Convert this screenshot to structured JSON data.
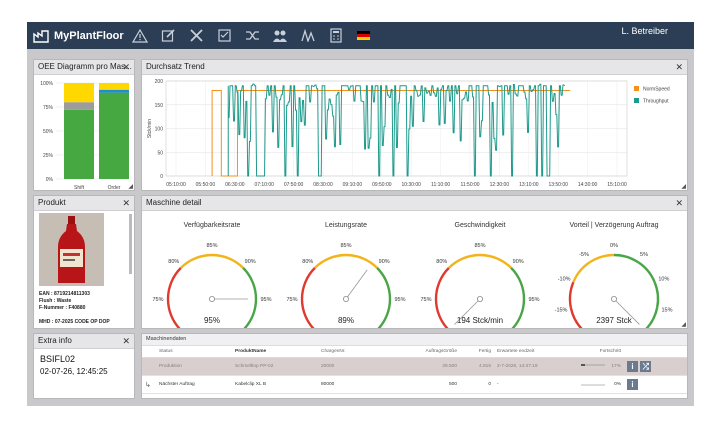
{
  "app": {
    "title": "MyPlantFloor",
    "user": "L. Betreiber",
    "nav_icons": [
      "warning-icon",
      "edit-icon",
      "tools-icon",
      "checklist-icon",
      "shuffle-icon",
      "users-icon",
      "signal-icon",
      "calculator-icon"
    ]
  },
  "oee": {
    "title": "OEE Diagramm pro Mas...",
    "y_ticks": [
      "100%",
      "75%",
      "50%",
      "25%",
      "0%"
    ],
    "categories": [
      "Shift",
      "Order"
    ],
    "colors": {
      "green": "#45a841",
      "grey": "#9c9c9c",
      "blue": "#1e8ed3",
      "yellow": "#ffd800"
    },
    "bars": [
      {
        "green": 0.72,
        "grey": 0.08,
        "blue": 0.0,
        "yellow": 0.2
      },
      {
        "green": 0.9,
        "grey": 0.0,
        "blue": 0.03,
        "yellow": 0.07
      }
    ]
  },
  "trend": {
    "title": "Durchsatz Trend",
    "ylabel": "Stck/min",
    "y_ticks": [
      "200",
      "150",
      "100",
      "50",
      "0"
    ],
    "x_ticks": [
      "05:10:00",
      "05:50:00",
      "06:30:00",
      "07:10:00",
      "07:50:00",
      "08:30:00",
      "09:10:00",
      "09:50:00",
      "10:30:00",
      "11:10:00",
      "11:50:00",
      "12:30:00",
      "13:10:00",
      "13:50:00",
      "14:30:00",
      "15:10:00"
    ],
    "legend": [
      {
        "name": "NormSpeed",
        "color": "#f2921b"
      },
      {
        "name": "Throughput",
        "color": "#1e9a8c"
      }
    ]
  },
  "product": {
    "title": "Produkt",
    "ean": "EAN : 8719214811303",
    "flush": "Flush : Waste",
    "fnum": "F-Nummer : F40880",
    "mhd": "MHD : 07-2025 CODE OP DOP"
  },
  "machine": {
    "title": "Maschine detail",
    "gauges": [
      {
        "title": "Verfügbarkeitsrate",
        "value_text": "95%",
        "labels": [
          "70%",
          "75%",
          "80%",
          "85%",
          "90%",
          "95%",
          "100%"
        ],
        "value": 95,
        "min": 70,
        "max": 100
      },
      {
        "title": "Leistungsrate",
        "value_text": "89%",
        "labels": [
          "70%",
          "75%",
          "80%",
          "85%",
          "90%",
          "95%",
          "100%"
        ],
        "value": 89,
        "min": 70,
        "max": 100
      },
      {
        "title": "Geschwindigkeit",
        "value_text": "194 Stck/min",
        "labels": [
          "70%",
          "75%",
          "80%",
          "85%",
          "90%",
          "95%",
          "100%"
        ],
        "value": 70,
        "min": 70,
        "max": 100
      },
      {
        "title": "Vorteil | Verzögerung Auftrag",
        "value_text": "2397 Stck",
        "labels": [
          "-20%",
          "-15%",
          "-10%",
          "-5%",
          "0%",
          "5%",
          "10%",
          "15%",
          "20%"
        ],
        "value": 20,
        "min": -20,
        "max": 20
      }
    ]
  },
  "extra": {
    "title": "Extra info",
    "line1": "BSIFL02",
    "line2": "02-07-26, 12:45:25"
  },
  "maschinendaten": {
    "title": "Maschinendaten",
    "columns": [
      "Status",
      "ProduktName",
      "ChargenNr.",
      "AuftragsGröße",
      "Fertig",
      "Erwartete endzeit",
      "Fortschritt"
    ],
    "rows": [
      {
        "status": "Produktion",
        "name": "Schmelltop PP-02",
        "charge": "20000",
        "size": "28.500",
        "done": "4.815",
        "end": "2-7-2026, 14:47:19",
        "progress": "17%",
        "progress_value": 0.17
      },
      {
        "status": "Nächster Auftrag",
        "name": "Kabelclip XL B",
        "charge": "80000",
        "size": "500",
        "done": "0",
        "end": "-",
        "progress": "0%",
        "progress_value": 0
      }
    ]
  }
}
